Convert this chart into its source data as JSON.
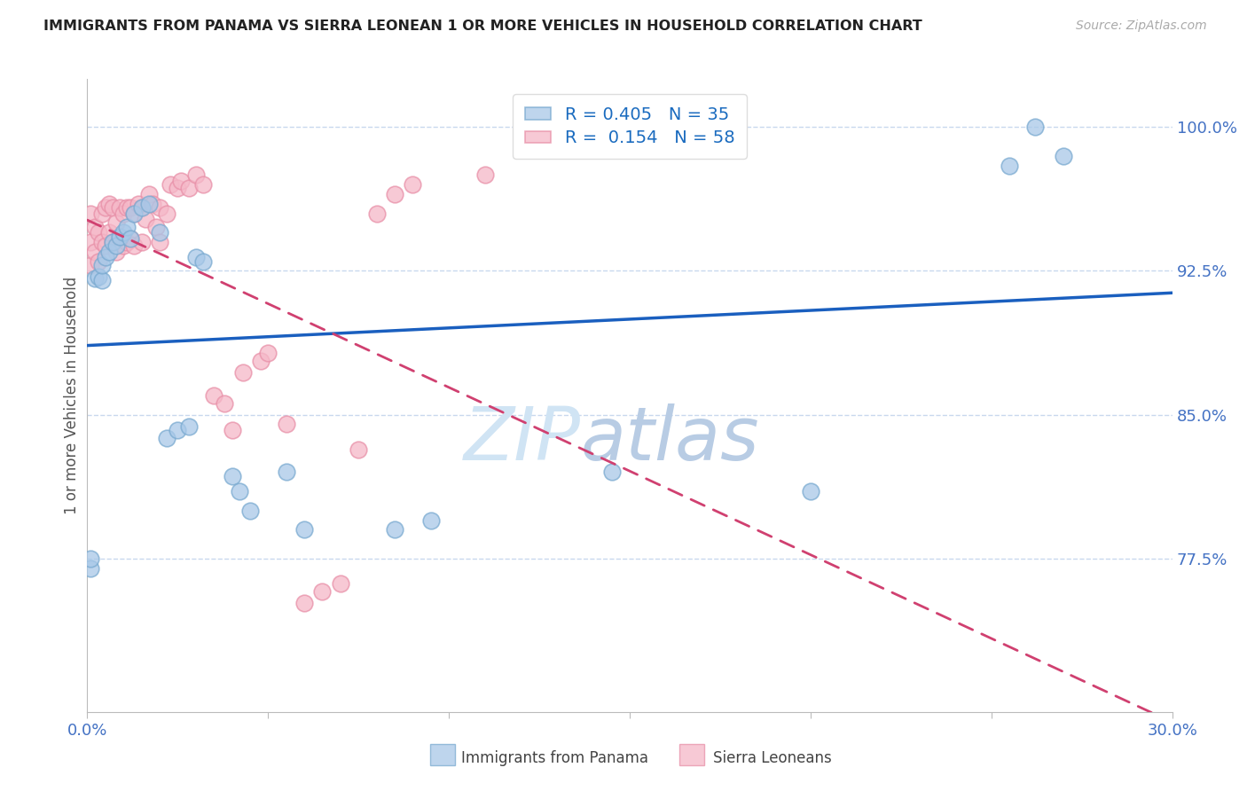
{
  "title": "IMMIGRANTS FROM PANAMA VS SIERRA LEONEAN 1 OR MORE VEHICLES IN HOUSEHOLD CORRELATION CHART",
  "source": "Source: ZipAtlas.com",
  "ylabel": "1 or more Vehicles in Household",
  "legend_label_panama": "Immigrants from Panama",
  "legend_label_sierra": "Sierra Leoneans",
  "color_panama": "#a8c8e8",
  "color_panama_edge": "#7aaad0",
  "color_sierra": "#f5b8c8",
  "color_sierra_edge": "#e890a8",
  "trend_color_panama": "#1a5fbf",
  "trend_color_sierra": "#d04070",
  "background_color": "#ffffff",
  "grid_color": "#c8d8ee",
  "title_color": "#222222",
  "source_color": "#aaaaaa",
  "axis_label_color": "#4472c4",
  "R_panama": 0.405,
  "N_panama": 35,
  "R_sierra": 0.154,
  "N_sierra": 58,
  "xmin": 0.0,
  "xmax": 0.3,
  "ymin": 0.695,
  "ymax": 1.025,
  "yticks": [
    0.775,
    0.85,
    0.925,
    1.0
  ],
  "yticklabels": [
    "77.5%",
    "85.0%",
    "92.5%",
    "100.0%"
  ],
  "panama_x": [
    0.001,
    0.001,
    0.002,
    0.003,
    0.004,
    0.004,
    0.005,
    0.006,
    0.007,
    0.008,
    0.009,
    0.01,
    0.011,
    0.012,
    0.013,
    0.015,
    0.017,
    0.02,
    0.022,
    0.025,
    0.028,
    0.03,
    0.032,
    0.04,
    0.042,
    0.045,
    0.055,
    0.06,
    0.085,
    0.095,
    0.145,
    0.2,
    0.255,
    0.262,
    0.27
  ],
  "panama_y": [
    0.77,
    0.775,
    0.921,
    0.922,
    0.92,
    0.928,
    0.932,
    0.935,
    0.94,
    0.938,
    0.943,
    0.945,
    0.948,
    0.942,
    0.955,
    0.958,
    0.96,
    0.945,
    0.838,
    0.842,
    0.844,
    0.932,
    0.93,
    0.818,
    0.81,
    0.8,
    0.82,
    0.79,
    0.79,
    0.795,
    0.82,
    0.81,
    0.98,
    1.0,
    0.985
  ],
  "sierra_x": [
    0.001,
    0.001,
    0.001,
    0.002,
    0.002,
    0.003,
    0.003,
    0.004,
    0.004,
    0.005,
    0.005,
    0.006,
    0.006,
    0.007,
    0.007,
    0.008,
    0.008,
    0.009,
    0.009,
    0.01,
    0.01,
    0.011,
    0.011,
    0.012,
    0.012,
    0.013,
    0.013,
    0.014,
    0.015,
    0.015,
    0.016,
    0.017,
    0.018,
    0.019,
    0.02,
    0.02,
    0.022,
    0.023,
    0.025,
    0.026,
    0.028,
    0.03,
    0.032,
    0.035,
    0.038,
    0.04,
    0.043,
    0.048,
    0.05,
    0.055,
    0.06,
    0.065,
    0.07,
    0.075,
    0.08,
    0.085,
    0.09,
    0.11
  ],
  "sierra_y": [
    0.928,
    0.94,
    0.955,
    0.935,
    0.948,
    0.93,
    0.945,
    0.94,
    0.955,
    0.938,
    0.958,
    0.945,
    0.96,
    0.94,
    0.958,
    0.935,
    0.95,
    0.942,
    0.958,
    0.938,
    0.955,
    0.94,
    0.958,
    0.942,
    0.958,
    0.938,
    0.955,
    0.96,
    0.94,
    0.958,
    0.952,
    0.965,
    0.96,
    0.948,
    0.94,
    0.958,
    0.955,
    0.97,
    0.968,
    0.972,
    0.968,
    0.975,
    0.97,
    0.86,
    0.856,
    0.842,
    0.872,
    0.878,
    0.882,
    0.845,
    0.752,
    0.758,
    0.762,
    0.832,
    0.955,
    0.965,
    0.97,
    0.975
  ]
}
